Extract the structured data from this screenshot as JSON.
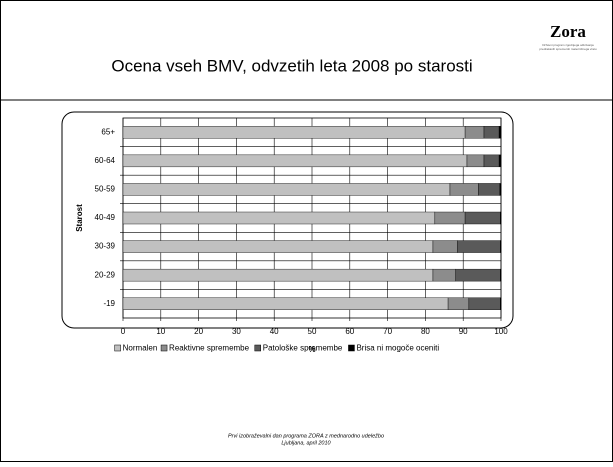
{
  "chart_data": {
    "type": "stacked-barh",
    "title": "Ocena vseh BMV, odvzetih leta 2008 po starosti",
    "logo": "Zora",
    "logo_subtitle": "Državni program zgodnjega odkrivanja predrakavih sprememb materničnega vratu",
    "footer": [
      "Prvi izobraževalni dan programa ZORA z mednarodno udeležbo",
      "Ljubljana, april 2010"
    ],
    "ylabel": "Starost",
    "xlabel": "%",
    "categories": [
      "65+",
      "60-64",
      "50-59",
      "40-49",
      "30-39",
      "20-29",
      "-19"
    ],
    "series": [
      {
        "name": "Normalen",
        "color": "#c0c0c0",
        "values": [
          90.5,
          91,
          86.5,
          82.5,
          82,
          82,
          86
        ]
      },
      {
        "name": "Reaktivne spremembe",
        "color": "#8c8c8c",
        "values": [
          5,
          4.5,
          7.5,
          8,
          6.5,
          6,
          5.5
        ]
      },
      {
        "name": "Patološke spremembe",
        "color": "#5a5a5a",
        "values": [
          4,
          4,
          5.7,
          9.3,
          11.3,
          11.8,
          8.3
        ]
      },
      {
        "name": "Brisa ni mogoče oceniti",
        "color": "#000000",
        "values": [
          0.5,
          0.5,
          0.3,
          0.2,
          0.2,
          0.2,
          0.2
        ]
      }
    ],
    "xlim": [
      0,
      100
    ],
    "xticks": [
      0,
      10,
      20,
      30,
      40,
      50,
      60,
      70,
      80,
      90,
      100
    ],
    "grid": true,
    "legend": "bottom"
  }
}
